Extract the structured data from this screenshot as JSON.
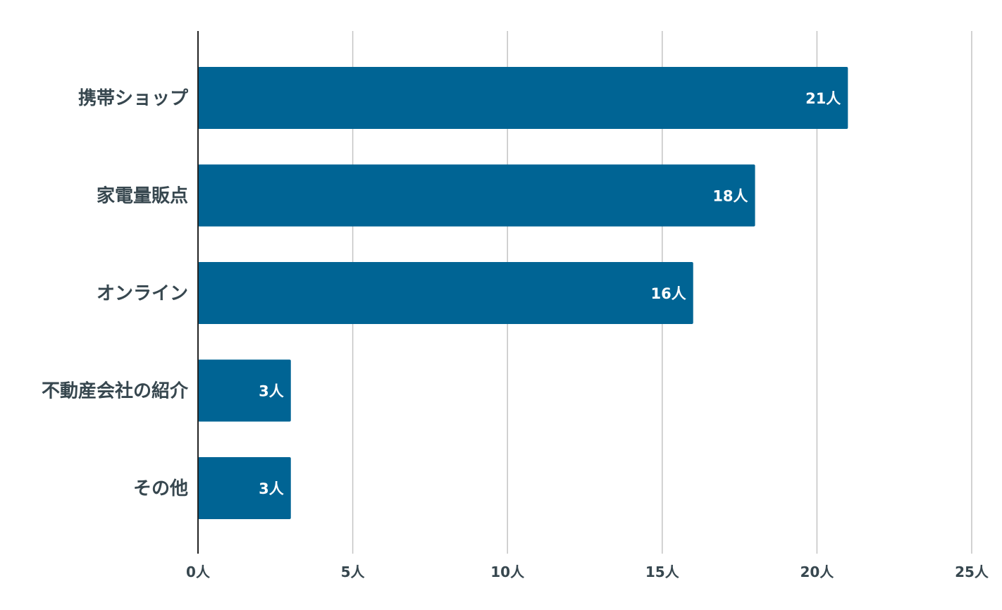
{
  "chart_data": {
    "type": "bar",
    "orientation": "horizontal",
    "categories": [
      "携帯ショップ",
      "家電量販点",
      "オンライン",
      "不動産会社の紹介",
      "その他"
    ],
    "values": [
      21,
      18,
      16,
      3,
      3
    ],
    "data_labels": [
      "21人",
      "18人",
      "16人",
      "3人",
      "3人"
    ],
    "x_ticks": [
      0,
      5,
      10,
      15,
      20,
      25
    ],
    "x_tick_labels": [
      "0人",
      "5人",
      "10人",
      "15人",
      "20人",
      "25人"
    ],
    "xlim": [
      0,
      25
    ],
    "title": "",
    "xlabel": "",
    "ylabel": "",
    "grid": true,
    "legend": "none",
    "colors": {
      "bar": "#006494",
      "grid": "#c4c4c4",
      "axis": "#222222",
      "text": "#37474f",
      "data_label": "#ffffff"
    }
  }
}
